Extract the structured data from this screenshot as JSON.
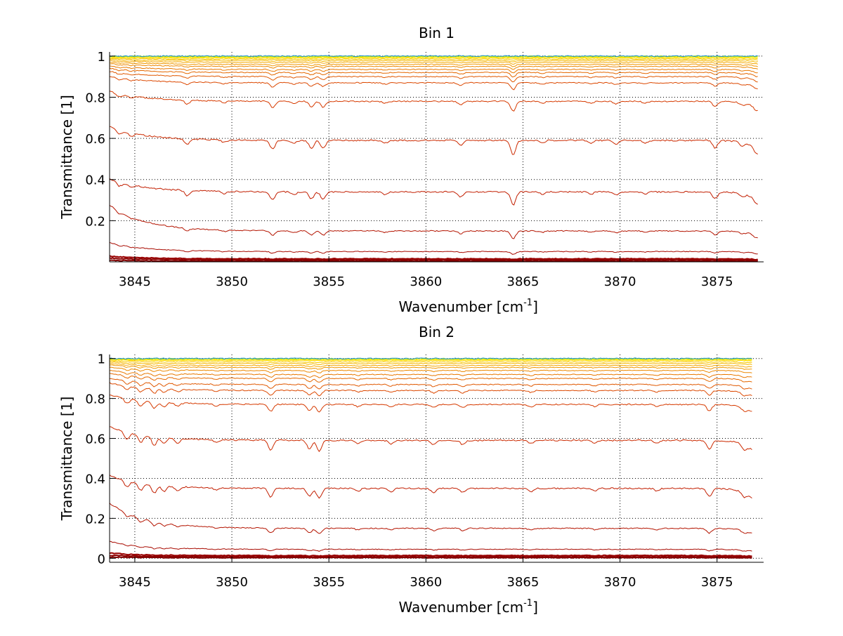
{
  "chart_data": [
    {
      "type": "line",
      "title": "Bin 1",
      "xlabel_main": "Wavenumber [cm",
      "xlabel_sup": "-1",
      "xlabel_end": "]",
      "ylabel": "Transmittance [1]",
      "xlim": [
        3843.7,
        3877.4
      ],
      "ylim": [
        0,
        1.02
      ],
      "xticks": [
        3845,
        3850,
        3855,
        3860,
        3865,
        3870,
        3875
      ],
      "xtick_labels": [
        "3845",
        "3850",
        "3855",
        "3860",
        "3865",
        "3870",
        "3875"
      ],
      "yticks": [
        0.2,
        0.4,
        0.6,
        0.8,
        1
      ],
      "ytick_labels": [
        "0.2",
        "0.4",
        "0.6",
        "0.8",
        "1"
      ],
      "grid": true,
      "x_end": 3877.1,
      "series_levels": [
        0.004,
        0.01,
        0.015,
        0.05,
        0.15,
        0.34,
        0.59,
        0.78,
        0.87,
        0.9,
        0.92,
        0.935,
        0.95,
        0.96,
        0.97,
        0.978,
        0.985,
        0.99,
        0.994,
        0.997,
        0.999,
        1.0
      ],
      "series_colors": [
        "#800000",
        "#8c0000",
        "#990000",
        "#a80a00",
        "#b41400",
        "#c21e00",
        "#cc2a00",
        "#d63a00",
        "#dc4800",
        "#e05800",
        "#e46800",
        "#e87800",
        "#ec8800",
        "#f09800",
        "#f4a800",
        "#f6b800",
        "#f8c800",
        "#fad800",
        "#fce800",
        "#f0f000",
        "#a0e040",
        "#2090d0"
      ],
      "absorption_lines": [
        [
          3844.2,
          0.5
        ],
        [
          3844.8,
          0.35
        ],
        [
          3847.7,
          0.6
        ],
        [
          3849.6,
          0.3
        ],
        [
          3852.1,
          1.0
        ],
        [
          3853.2,
          0.35
        ],
        [
          3854.1,
          0.85
        ],
        [
          3854.7,
          0.9
        ],
        [
          3857.9,
          0.3
        ],
        [
          3861.8,
          0.6
        ],
        [
          3864.5,
          1.6
        ],
        [
          3866.0,
          0.3
        ],
        [
          3868.5,
          0.3
        ],
        [
          3869.8,
          0.4
        ],
        [
          3871.3,
          0.3
        ],
        [
          3874.9,
          0.8
        ],
        [
          3876.3,
          0.4
        ],
        [
          3877.0,
          0.5
        ]
      ]
    },
    {
      "type": "line",
      "title": "Bin 2",
      "xlabel_main": "Wavenumber [cm",
      "xlabel_sup": "-1",
      "xlabel_end": "]",
      "ylabel": "Transmittance [1]",
      "xlim": [
        3843.7,
        3877.4
      ],
      "ylim": [
        -0.02,
        1.02
      ],
      "xticks": [
        3845,
        3850,
        3855,
        3860,
        3865,
        3870,
        3875
      ],
      "xtick_labels": [
        "3845",
        "3850",
        "3855",
        "3860",
        "3865",
        "3870",
        "3875"
      ],
      "yticks": [
        0,
        0.2,
        0.4,
        0.6,
        0.8,
        1
      ],
      "ytick_labels": [
        "0",
        "0.2",
        "0.4",
        "0.6",
        "0.8",
        "1"
      ],
      "grid": true,
      "x_end": 3876.8,
      "series_levels": [
        0.003,
        0.008,
        0.014,
        0.045,
        0.15,
        0.35,
        0.59,
        0.77,
        0.84,
        0.87,
        0.9,
        0.92,
        0.94,
        0.955,
        0.965,
        0.975,
        0.983,
        0.99,
        0.994,
        0.997,
        0.999,
        1.0
      ],
      "series_colors": [
        "#800000",
        "#8c0000",
        "#990000",
        "#a80a00",
        "#b41400",
        "#c21e00",
        "#cc2a00",
        "#d63a00",
        "#dc4800",
        "#e05800",
        "#e46800",
        "#e87800",
        "#ec8800",
        "#f09800",
        "#f4a800",
        "#f6b800",
        "#f8c800",
        "#fad800",
        "#fce800",
        "#f0f000",
        "#a0e040",
        "#2090d0"
      ],
      "absorption_lines": [
        [
          3844.6,
          0.8
        ],
        [
          3845.3,
          0.9
        ],
        [
          3846.0,
          1.0
        ],
        [
          3846.5,
          0.7
        ],
        [
          3847.2,
          0.5
        ],
        [
          3849.2,
          0.3
        ],
        [
          3852.0,
          1.1
        ],
        [
          3854.0,
          1.0
        ],
        [
          3854.5,
          1.2
        ],
        [
          3856.5,
          0.35
        ],
        [
          3858.2,
          0.4
        ],
        [
          3860.4,
          0.5
        ],
        [
          3861.9,
          0.5
        ],
        [
          3865.4,
          0.4
        ],
        [
          3868.7,
          0.3
        ],
        [
          3871.9,
          0.3
        ],
        [
          3874.6,
          1.0
        ],
        [
          3876.4,
          0.6
        ]
      ]
    }
  ]
}
